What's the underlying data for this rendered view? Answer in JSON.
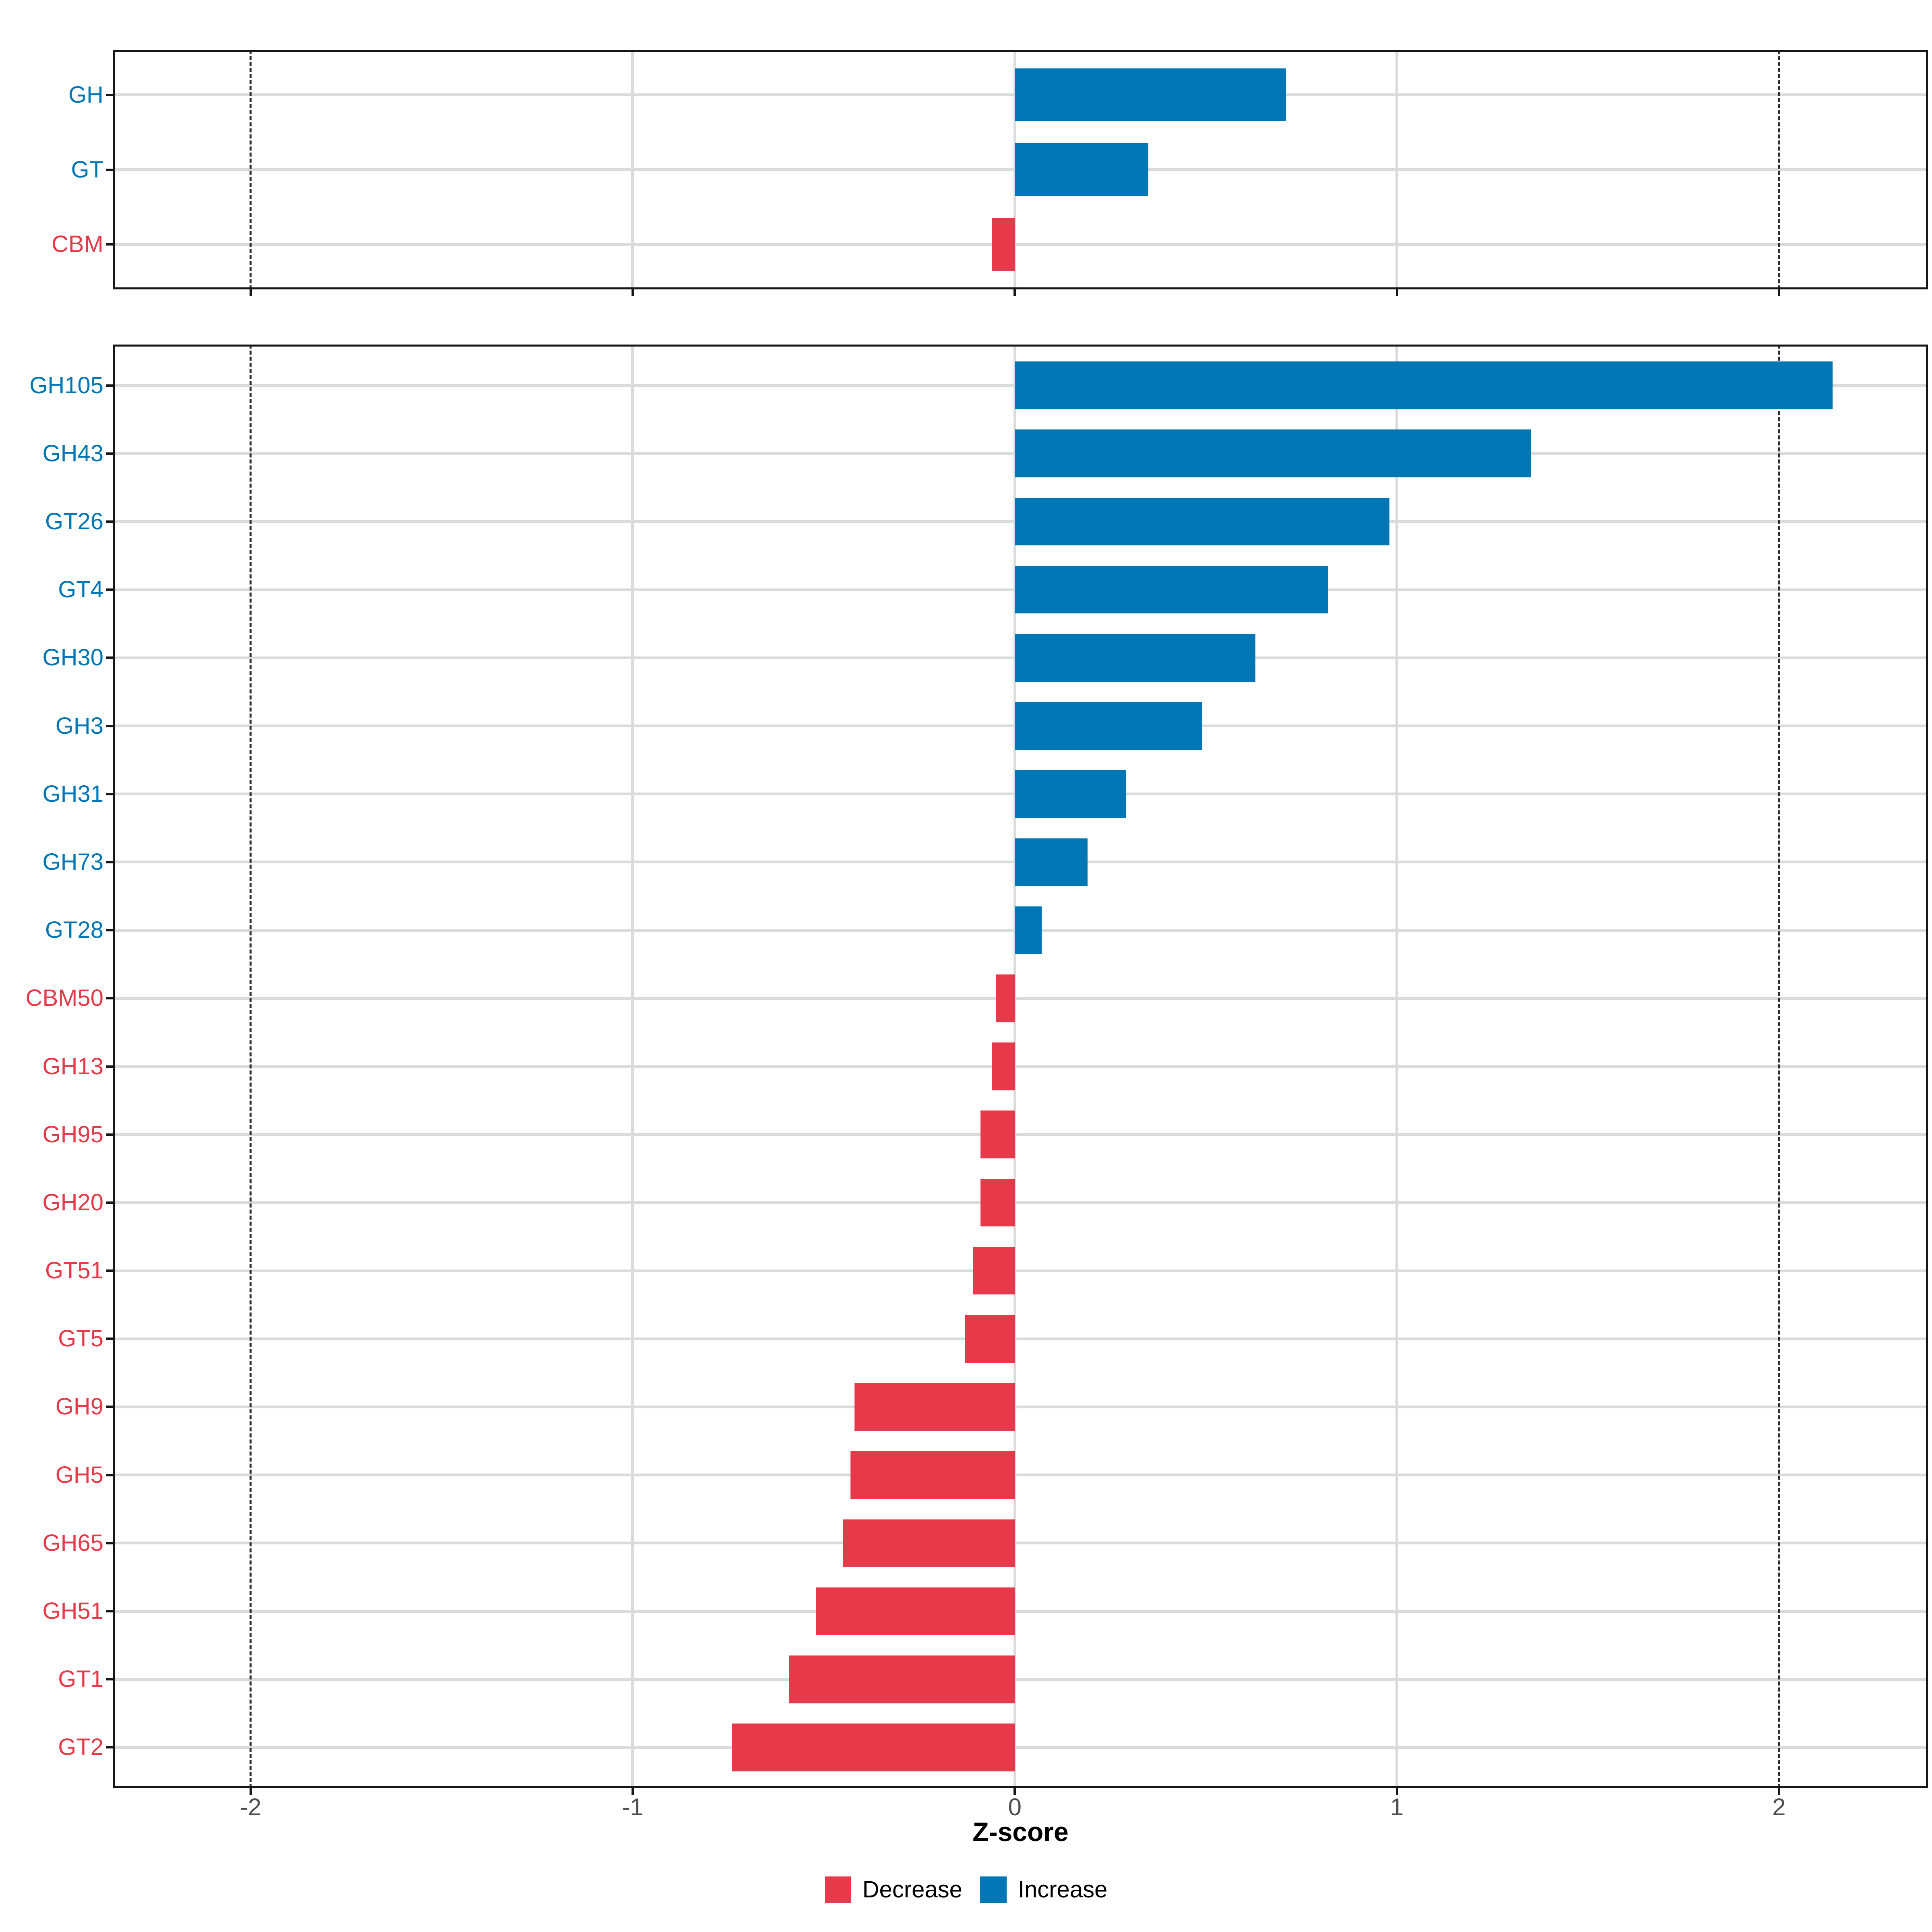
{
  "chart_data": {
    "type": "bar",
    "orientation": "horizontal",
    "title": "",
    "xlabel": "Z-score",
    "x_ticks": [
      -2,
      -1,
      0,
      1,
      2
    ],
    "xlim": [
      -2.36,
      2.39
    ],
    "gridlines_at": [
      -1,
      0,
      1
    ],
    "dashed_reference_lines_at": [
      -2,
      2
    ],
    "grid": true,
    "legend_position": "bottom",
    "legend": [
      {
        "key": "decrease",
        "label": "Decrease",
        "color": "#E6394A"
      },
      {
        "key": "increase",
        "label": "Increase",
        "color": "#0076B4"
      }
    ],
    "colors": {
      "increase": "#0076B4",
      "decrease": "#E6394A",
      "grid": "#DBDBDB",
      "dashed_line": "#2E2E2E",
      "tick_label": "#4D4D4D",
      "panel_border": "#171717",
      "background": "#FFFFFF"
    },
    "panels": [
      {
        "name": "enzyme-class-summary",
        "categories": [
          "GH",
          "GT",
          "CBM"
        ],
        "values": [
          0.71,
          0.35,
          -0.06
        ]
      },
      {
        "name": "enzyme-family-detail",
        "categories": [
          "GH105",
          "GH43",
          "GT26",
          "GT4",
          "GH30",
          "GH3",
          "GH31",
          "GH73",
          "GT28",
          "CBM50",
          "GH13",
          "GH95",
          "GH20",
          "GT51",
          "GT5",
          "GH9",
          "GH5",
          "GH65",
          "GH51",
          "GT1",
          "GT2"
        ],
        "values": [
          2.14,
          1.35,
          0.98,
          0.82,
          0.63,
          0.49,
          0.29,
          0.19,
          0.07,
          -0.05,
          -0.06,
          -0.09,
          -0.09,
          -0.11,
          -0.13,
          -0.42,
          -0.43,
          -0.45,
          -0.52,
          -0.59,
          -0.74
        ]
      }
    ]
  }
}
